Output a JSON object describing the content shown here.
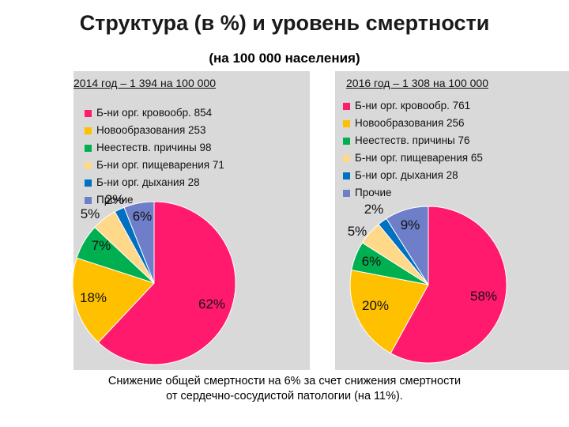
{
  "title": "Структура (в %) и уровень смертности",
  "subtitle": "(на 100 000 населения)",
  "note_line1": "Снижение общей смертности на 6% за счет снижения смертности",
  "note_line2": "от сердечно-сосудистой патологии (на 11%).",
  "chart_data": [
    {
      "type": "pie",
      "title": "2014 год – 1 394 на 100 000",
      "legend": [
        "Б-ни орг. кровообр. 854",
        "Новообразования 253",
        "Неестеств. причины 98",
        "Б-ни орг. пищеварения 71",
        "Б-ни орг. дыхания 28",
        "Прочие"
      ],
      "values": [
        62,
        18,
        7,
        5,
        2,
        6
      ],
      "data_labels": [
        "62%",
        "18%",
        "7%",
        "5%",
        "2%",
        "6%"
      ],
      "colors": [
        "#ff1a6e",
        "#ffc000",
        "#00b050",
        "#ffd88a",
        "#0070c0",
        "#6e7ec8"
      ]
    },
    {
      "type": "pie",
      "title": "2016 год – 1 308 на 100 000",
      "legend": [
        "Б-ни орг. кровообр. 761",
        "Новообразования 256",
        "Неестеств. причины 76",
        "Б-ни орг. пищеварения 65",
        "Б-ни орг. дыхания 28",
        "Прочие"
      ],
      "values": [
        58,
        20,
        6,
        5,
        2,
        9
      ],
      "data_labels": [
        "58%",
        "20%",
        "6%",
        "5%",
        "2%",
        "9%"
      ],
      "colors": [
        "#ff1a6e",
        "#ffc000",
        "#00b050",
        "#ffd88a",
        "#0070c0",
        "#6e7ec8"
      ]
    }
  ]
}
